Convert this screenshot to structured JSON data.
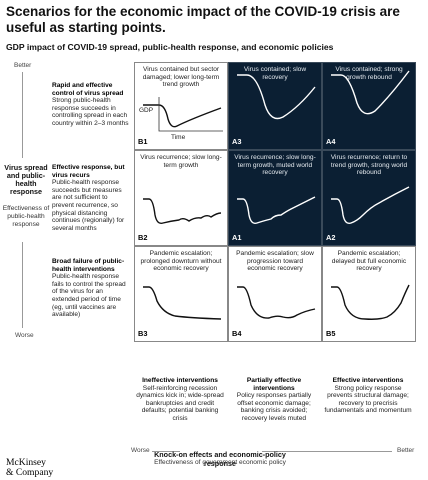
{
  "header": {
    "title": "Scenarios for the economic impact of the COVID-19 crisis are useful as starting points.",
    "subtitle": "GDP impact of COVID-19 spread, public-health response, and economic policies"
  },
  "y_axis": {
    "title": "Virus spread and public-health response",
    "subtitle": "Effectiveness of public-health response",
    "top_label": "Better",
    "bottom_label": "Worse"
  },
  "x_axis": {
    "title": "Knock-on effects and economic-policy response",
    "subtitle": "Effectiveness of government economic policy",
    "left_label": "Worse",
    "right_label": "Better"
  },
  "rows": [
    {
      "heading": "Rapid and effective control of virus spread",
      "body": "Strong public-health response succeeds in controlling spread in each country within 2–3 months"
    },
    {
      "heading": "Effective response, but virus recurs",
      "body": "Public-health response succeeds but measures are not sufficient to prevent recurrence, so physical distancing continues (regionally) for several months"
    },
    {
      "heading": "Broad failure of public-health interventions",
      "body": "Public-health response fails to control the spread of the virus for an extended period of time (eg, until vaccines are available)"
    }
  ],
  "columns": [
    {
      "heading": "Ineffective interventions",
      "body": "Self-reinforcing recession dynamics kick in; wide-spread bankruptcies and credit defaults; potential banking crisis"
    },
    {
      "heading": "Partially effective interventions",
      "body": "Policy responses partially offset economic damage; banking crisis avoided; recovery levels muted"
    },
    {
      "heading": "Effective interventions",
      "body": "Strong policy response prevents structural damage; recovery to precrisis fundamentals and momentum"
    }
  ],
  "cells": [
    {
      "code": "B1",
      "text": "Virus contained but sector damaged; lower long-term trend growth",
      "dark": false,
      "curve": "b1",
      "gdp_label": "GDP",
      "time_label": "Time"
    },
    {
      "code": "A3",
      "text": "Virus contained; slow recovery",
      "dark": true,
      "curve": "a3"
    },
    {
      "code": "A4",
      "text": "Virus contained; strong growth rebound",
      "dark": true,
      "curve": "a4"
    },
    {
      "code": "B2",
      "text": "Virus recurrence; slow long-term growth",
      "dark": false,
      "curve": "b2"
    },
    {
      "code": "A1",
      "text": "Virus recurrence; slow long-term growth, muted world recovery",
      "dark": true,
      "curve": "a1"
    },
    {
      "code": "A2",
      "text": "Virus recurrence; return to trend growth, strong world rebound",
      "dark": true,
      "curve": "a2"
    },
    {
      "code": "B3",
      "text": "Pandemic escalation; prolonged downturn without economic recovery",
      "dark": false,
      "curve": "b3"
    },
    {
      "code": "B4",
      "text": "Pandemic escalation; slow progression toward economic recovery",
      "dark": false,
      "curve": "b4"
    },
    {
      "code": "B5",
      "text": "Pandemic escalation; delayed but full economic recovery",
      "dark": false,
      "curve": "b5"
    }
  ],
  "brand": {
    "line1": "McKinsey",
    "line2": "& Company"
  },
  "colors": {
    "dark_cell": "#0b1f33",
    "light_cell": "#ffffff",
    "curve_light": "#111111",
    "curve_dark": "#ffffff"
  }
}
